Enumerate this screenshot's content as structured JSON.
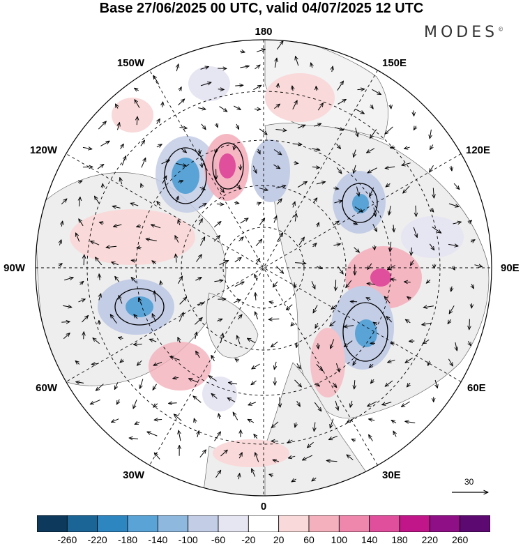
{
  "header": {
    "title": "Base 27/06/2025 00 UTC, valid 04/07/2025 12 UTC",
    "brand": "MODES",
    "brand_mark": "©"
  },
  "map": {
    "projection": "north-polar-stereographic",
    "longitude_labels": {
      "lon_180": "180",
      "lon_150E": "150E",
      "lon_120E": "120E",
      "lon_90E": "90E",
      "lon_60E": "60E",
      "lon_30E": "30E",
      "lon_0": "0",
      "lon_30W": "30W",
      "lon_60W": "60W",
      "lon_90W": "90W",
      "lon_120W": "120W",
      "lon_150W": "150W"
    },
    "graticule": "dashed",
    "anomaly_centers": [
      {
        "id": "neg-north-pacific",
        "sign": "negative",
        "peak": -180
      },
      {
        "id": "pos-bering",
        "sign": "positive",
        "peak": 180
      },
      {
        "id": "neg-chukchi",
        "sign": "negative",
        "peak": -100
      },
      {
        "id": "neg-east-siberia",
        "sign": "negative",
        "peak": -140
      },
      {
        "id": "pos-central-siberia",
        "sign": "positive",
        "peak": 180
      },
      {
        "id": "neg-west-siberia",
        "sign": "negative",
        "peak": -140
      },
      {
        "id": "neg-hudson-bay",
        "sign": "negative",
        "peak": -180
      },
      {
        "id": "pos-north-atlantic",
        "sign": "positive",
        "peak": 100
      },
      {
        "id": "pos-canada",
        "sign": "positive",
        "peak": 60
      }
    ]
  },
  "reference_vector": {
    "label": "30"
  },
  "colorbar": {
    "tick_labels": [
      "-260",
      "-220",
      "-180",
      "-140",
      "-100",
      "-60",
      "-20",
      "20",
      "60",
      "100",
      "140",
      "180",
      "220",
      "260"
    ],
    "colors": [
      "#0d3a5c",
      "#1a6496",
      "#2e86c1",
      "#5aa3d6",
      "#8fb8de",
      "#c3cde6",
      "#e6e5f2",
      "#ffffff",
      "#f9d9d9",
      "#f4b0bc",
      "#ef86ac",
      "#e04f9b",
      "#c0168a",
      "#8e0f86",
      "#5c0a72"
    ]
  },
  "colors": {
    "positive_shade": "#f4c2c8",
    "negative_shade": "#c3cde6",
    "land": "#eeeeee"
  }
}
